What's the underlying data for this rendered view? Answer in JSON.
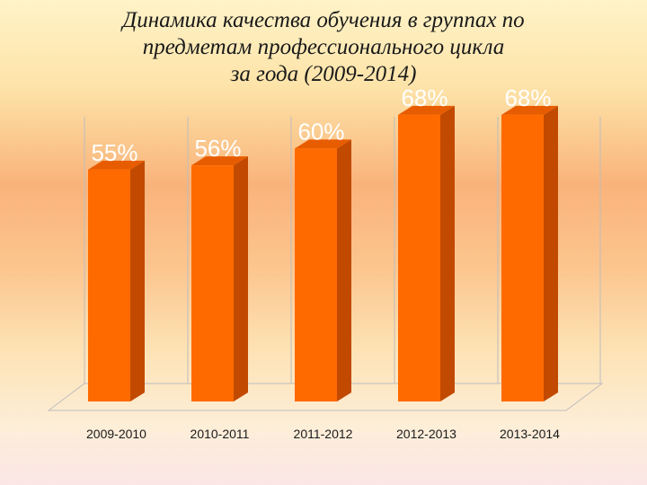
{
  "title_lines": [
    "Динамика качества обучения  в группах по",
    "предметам профессионального цикла",
    "за  года (2009-2014)"
  ],
  "colors": {
    "bar_front": "#ff6a00",
    "bar_side": "#c24a00",
    "bar_top": "#e85c00",
    "grid": "#bdbdbd"
  },
  "chart_data": {
    "type": "bar",
    "title": "Динамика качества обучения  в группах по предметам профессионального цикла за  года (2009-2014)",
    "categories": [
      "2009-2010",
      "2010-2011",
      "2011-2012",
      "2012-2013",
      "2013-2014"
    ],
    "values": [
      55,
      56,
      60,
      68,
      68
    ],
    "value_labels": [
      "55%",
      "56%",
      "60%",
      "68%",
      "68%"
    ],
    "ylim": [
      0,
      75
    ],
    "grid": true,
    "legend": false
  }
}
